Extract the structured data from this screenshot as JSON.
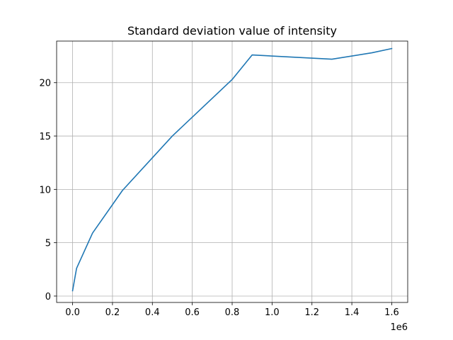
{
  "chart_data": {
    "type": "line",
    "title": "Standard deviation value of intensity",
    "xlabel": "",
    "ylabel": "",
    "x_offset_label": "1e6",
    "xlim": [
      -80000,
      1680000
    ],
    "ylim": [
      -0.6,
      23.9
    ],
    "grid": true,
    "x_ticks": [
      0,
      200000,
      400000,
      600000,
      800000,
      1000000,
      1200000,
      1400000,
      1600000
    ],
    "x_tick_labels": [
      "0.0",
      "0.2",
      "0.4",
      "0.6",
      "0.8",
      "1.0",
      "1.2",
      "1.4",
      "1.6"
    ],
    "y_ticks": [
      0,
      5,
      10,
      15,
      20
    ],
    "y_tick_labels": [
      "0",
      "5",
      "10",
      "15",
      "20"
    ],
    "series": [
      {
        "color": "#1f77b4",
        "x": [
          0,
          20000,
          100000,
          250000,
          500000,
          800000,
          900000,
          1300000,
          1500000,
          1600000
        ],
        "y": [
          0.5,
          2.6,
          5.9,
          9.9,
          15.0,
          20.3,
          22.6,
          22.2,
          22.8,
          23.2
        ]
      }
    ]
  }
}
